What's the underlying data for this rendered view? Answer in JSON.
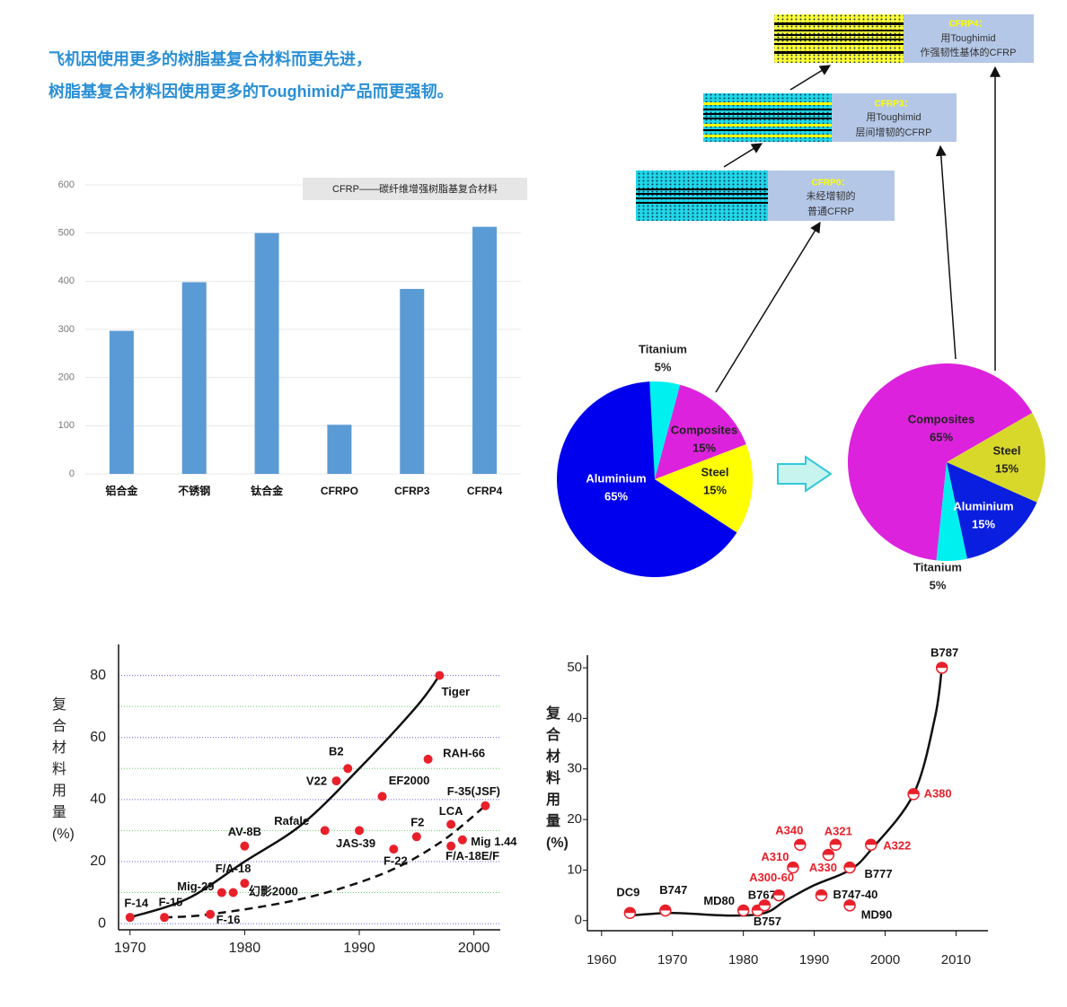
{
  "header": {
    "lines": [
      "飞机因使用更多的树脂基复合材料而更先进，",
      "树脂基复合材料因使用更多的Toughimid产品而更强韧。"
    ]
  },
  "diagram": {
    "nodes": [
      {
        "title": "CFRP0：",
        "lines": [
          "未经增韧的",
          "普通CFRP"
        ]
      },
      {
        "title": "CFRP3：",
        "lines": [
          "用Toughimid",
          "层间增韧的CFRP"
        ]
      },
      {
        "title": "CFRP4：",
        "lines": [
          "用Toughimid",
          "作强韧性基体的CFRP"
        ]
      }
    ]
  },
  "chart_data": [
    {
      "type": "bar",
      "annotation": "CFRP——碳纤维增强树脂基复合材料",
      "categories": [
        "铝合金",
        "不锈钢",
        "钛合金",
        "CFRPO",
        "CFRP3",
        "CFRP4"
      ],
      "values": [
        297,
        398,
        500,
        102,
        384,
        513
      ],
      "color": "#5b9bd5",
      "ylim": [
        0,
        600
      ],
      "yticks": [
        0,
        100,
        200,
        300,
        400,
        500,
        600
      ],
      "grid": true
    },
    {
      "type": "pie",
      "categories": [
        "Titanium",
        "Composites",
        "Steel",
        "Aluminium"
      ],
      "values": [
        5,
        15,
        15,
        65
      ],
      "value_labels": [
        "5%",
        "15%",
        "15%",
        "65%"
      ],
      "colors": [
        "#00f0f0",
        "#dd22dd",
        "#ffff00",
        "#0000ee"
      ]
    },
    {
      "type": "pie",
      "categories": [
        "Composites",
        "Steel",
        "Aluminium",
        "Titanium"
      ],
      "values": [
        65,
        15,
        15,
        5
      ],
      "value_labels": [
        "65%",
        "15%",
        "15%",
        "5%"
      ],
      "colors": [
        "#dd22dd",
        "#d8d82a",
        "#0a1ee0",
        "#00f0f0"
      ]
    },
    {
      "type": "scatter",
      "y_label": "复合材料用量(%)",
      "marker": "dot",
      "color": "#e8202a",
      "labels": [
        "F-14",
        "F-15",
        "F-16",
        "Mig-29",
        "F/A-18",
        "幻影2000",
        "AV-8B",
        "Rafale",
        "JAS-39",
        "V22",
        "B2",
        "EF2000",
        "F-22",
        "F2",
        "RAH-66",
        "LCA",
        "F/A-18E/F",
        "Mig 1.44",
        "Tiger",
        "F-35(JSF)"
      ],
      "x": [
        1970,
        1973,
        1977,
        1978,
        1979,
        1980,
        1980,
        1987,
        1990,
        1988,
        1989,
        1992,
        1993,
        1995,
        1996,
        1998,
        1998,
        1999,
        1997,
        2001
      ],
      "y": [
        2,
        2,
        3,
        10,
        10,
        13,
        25,
        30,
        30,
        46,
        50,
        41,
        24,
        28,
        53,
        32,
        25,
        27,
        80,
        38
      ],
      "curves": [
        {
          "style": "solid",
          "x": [
            1970,
            1975,
            1980,
            1985,
            1990,
            1995,
            1997
          ],
          "y": [
            2,
            8,
            20,
            32,
            50,
            70,
            80
          ]
        },
        {
          "style": "dashed",
          "x": [
            1973,
            1977,
            1985,
            1992,
            1997,
            2001
          ],
          "y": [
            2,
            3,
            8,
            16,
            26,
            38
          ]
        }
      ],
      "xlim": [
        1969,
        2002.3
      ],
      "xticks": [
        1970,
        1980,
        1990,
        2000
      ],
      "ylim": [
        -2,
        90
      ],
      "yticks": [
        0,
        20,
        40,
        60,
        80
      ],
      "grid": true,
      "minor_grid": [
        10,
        30,
        50,
        70
      ]
    },
    {
      "type": "scatter",
      "y_label": "复合材料用量(%)",
      "marker": "half",
      "color": "#e8202a",
      "labels": [
        "DC9",
        "B747",
        "MD80",
        "B757",
        "B767",
        "A300-60",
        "A310",
        "A340",
        "A330",
        "A321",
        "B747-40",
        "MD90",
        "B777",
        "A322",
        "A380",
        "B787"
      ],
      "label_colors": [
        "#111",
        "#111",
        "#111",
        "#111",
        "#111",
        "#e8202a",
        "#e8202a",
        "#e8202a",
        "#e8202a",
        "#e8202a",
        "#111",
        "#111",
        "#111",
        "#e8202a",
        "#e8202a",
        "#111"
      ],
      "x": [
        1964,
        1969,
        1980,
        1982,
        1983,
        1985,
        1987,
        1988,
        1992,
        1993,
        1991,
        1995,
        1995,
        1998,
        2004,
        2008
      ],
      "y": [
        1.5,
        2,
        2,
        2,
        3,
        5,
        10.5,
        15,
        13,
        15,
        5,
        3,
        10.5,
        15,
        25,
        50
      ],
      "curves": [
        {
          "style": "solid",
          "x": [
            1964,
            1970,
            1978,
            1983,
            1986,
            1990,
            1995,
            1998,
            2004,
            2007,
            2008
          ],
          "y": [
            1,
            1.5,
            1,
            1.5,
            4,
            7,
            10,
            14,
            25,
            40,
            50
          ]
        }
      ],
      "xlim": [
        1958,
        2014.5
      ],
      "xticks": [
        1960,
        1970,
        1980,
        1990,
        2000,
        2010
      ],
      "ylim": [
        -2,
        52.5
      ],
      "yticks": [
        0,
        10,
        20,
        30,
        40,
        50
      ],
      "grid": false
    }
  ]
}
